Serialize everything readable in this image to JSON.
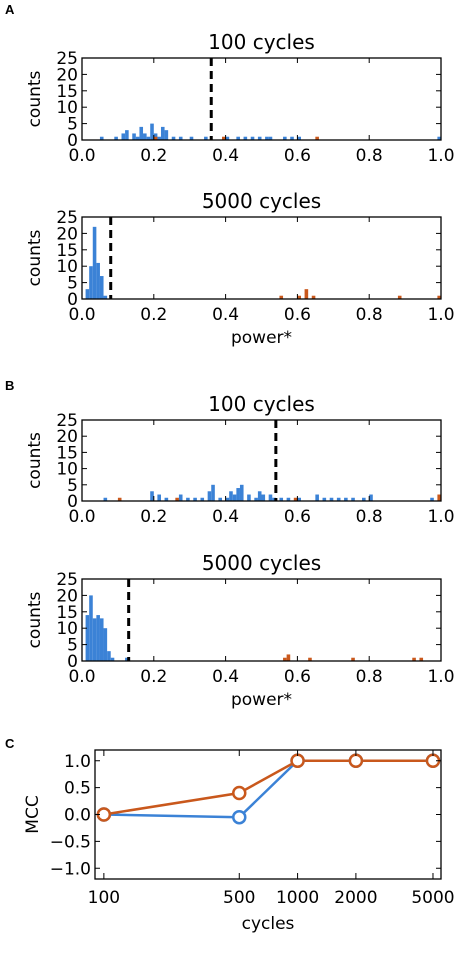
{
  "colors": {
    "blue": "#3b82d6",
    "orange": "#c9581c",
    "threshold": "#000000"
  },
  "panels": {
    "A": "A",
    "B": "B",
    "C": "C"
  },
  "chart_data": [
    {
      "type": "bar",
      "panel": "A",
      "title": "100 cycles",
      "xlabel": "",
      "ylabel": "counts",
      "xlim": [
        0,
        1
      ],
      "ylim": [
        0,
        25
      ],
      "xticks": [
        "0.0",
        "0.2",
        "0.4",
        "0.6",
        "0.8",
        "1.0"
      ],
      "yticks": [
        "0",
        "5",
        "10",
        "15",
        "20",
        "25"
      ],
      "threshold": 0.36,
      "series": [
        {
          "color": "blue",
          "bins": [
            [
              0.05,
              1
            ],
            [
              0.09,
              1
            ],
            [
              0.11,
              2
            ],
            [
              0.12,
              3
            ],
            [
              0.14,
              2
            ],
            [
              0.15,
              1
            ],
            [
              0.16,
              4
            ],
            [
              0.17,
              2
            ],
            [
              0.18,
              1
            ],
            [
              0.19,
              5
            ],
            [
              0.2,
              2
            ],
            [
              0.21,
              1
            ],
            [
              0.22,
              4
            ],
            [
              0.23,
              3
            ],
            [
              0.25,
              1
            ],
            [
              0.27,
              1
            ],
            [
              0.3,
              1
            ],
            [
              0.34,
              1
            ],
            [
              0.4,
              1
            ],
            [
              0.43,
              1
            ],
            [
              0.45,
              1
            ],
            [
              0.47,
              1
            ],
            [
              0.49,
              1
            ],
            [
              0.51,
              1
            ],
            [
              0.52,
              1
            ],
            [
              0.56,
              1
            ],
            [
              0.58,
              1
            ],
            [
              0.6,
              1
            ],
            [
              1.0,
              1
            ]
          ]
        },
        {
          "color": "orange",
          "bins": [
            [
              0.2,
              1
            ],
            [
              0.39,
              1
            ],
            [
              0.65,
              1
            ]
          ]
        }
      ]
    },
    {
      "type": "bar",
      "panel": "A",
      "title": "5000 cycles",
      "xlabel": "power*",
      "ylabel": "counts",
      "xlim": [
        0,
        1
      ],
      "ylim": [
        0,
        25
      ],
      "xticks": [
        "0.0",
        "0.2",
        "0.4",
        "0.6",
        "0.8",
        "1.0"
      ],
      "yticks": [
        "0",
        "5",
        "10",
        "15",
        "20",
        "25"
      ],
      "threshold": 0.08,
      "series": [
        {
          "color": "blue",
          "bins": [
            [
              0.01,
              3
            ],
            [
              0.02,
              10
            ],
            [
              0.03,
              22
            ],
            [
              0.04,
              11
            ],
            [
              0.05,
              7
            ],
            [
              0.06,
              1
            ]
          ]
        },
        {
          "color": "orange",
          "bins": [
            [
              0.55,
              1
            ],
            [
              0.6,
              1
            ],
            [
              0.62,
              3
            ],
            [
              0.64,
              1
            ],
            [
              0.88,
              1
            ],
            [
              1.0,
              1
            ]
          ]
        }
      ]
    },
    {
      "type": "bar",
      "panel": "B",
      "title": "100 cycles",
      "xlabel": "",
      "ylabel": "counts",
      "xlim": [
        0,
        1
      ],
      "ylim": [
        0,
        25
      ],
      "xticks": [
        "0.0",
        "0.2",
        "0.4",
        "0.6",
        "0.8",
        "1.0"
      ],
      "yticks": [
        "0",
        "5",
        "10",
        "15",
        "20",
        "25"
      ],
      "threshold": 0.54,
      "series": [
        {
          "color": "blue",
          "bins": [
            [
              0.06,
              1
            ],
            [
              0.19,
              3
            ],
            [
              0.21,
              2
            ],
            [
              0.23,
              1
            ],
            [
              0.27,
              2
            ],
            [
              0.29,
              1
            ],
            [
              0.31,
              1
            ],
            [
              0.33,
              1
            ],
            [
              0.35,
              3
            ],
            [
              0.36,
              5
            ],
            [
              0.38,
              1
            ],
            [
              0.4,
              1
            ],
            [
              0.41,
              3
            ],
            [
              0.42,
              2
            ],
            [
              0.43,
              4
            ],
            [
              0.44,
              5
            ],
            [
              0.46,
              2
            ],
            [
              0.48,
              1
            ],
            [
              0.49,
              3
            ],
            [
              0.5,
              2
            ],
            [
              0.52,
              2
            ],
            [
              0.53,
              1
            ],
            [
              0.55,
              1
            ],
            [
              0.57,
              1
            ],
            [
              0.6,
              1
            ],
            [
              0.65,
              2
            ],
            [
              0.67,
              1
            ],
            [
              0.69,
              1
            ],
            [
              0.71,
              1
            ],
            [
              0.73,
              1
            ],
            [
              0.75,
              1
            ],
            [
              0.78,
              1
            ],
            [
              0.8,
              2
            ],
            [
              0.97,
              1
            ]
          ]
        },
        {
          "color": "orange",
          "bins": [
            [
              0.1,
              1
            ],
            [
              0.26,
              1
            ],
            [
              0.59,
              1
            ],
            [
              0.99,
              2
            ]
          ]
        }
      ]
    },
    {
      "type": "bar",
      "panel": "B",
      "title": "5000 cycles",
      "xlabel": "power*",
      "ylabel": "counts",
      "xlim": [
        0,
        1
      ],
      "ylim": [
        0,
        25
      ],
      "xticks": [
        "0.0",
        "0.2",
        "0.4",
        "0.6",
        "0.8",
        "1.0"
      ],
      "yticks": [
        "0",
        "5",
        "10",
        "15",
        "20",
        "25"
      ],
      "threshold": 0.13,
      "series": [
        {
          "color": "blue",
          "bins": [
            [
              0.01,
              14
            ],
            [
              0.02,
              20
            ],
            [
              0.03,
              13
            ],
            [
              0.04,
              14
            ],
            [
              0.05,
              13
            ],
            [
              0.06,
              10
            ],
            [
              0.07,
              3
            ],
            [
              0.08,
              1
            ],
            [
              0.12,
              1
            ]
          ]
        },
        {
          "color": "orange",
          "bins": [
            [
              0.56,
              1
            ],
            [
              0.57,
              2
            ],
            [
              0.63,
              1
            ],
            [
              0.75,
              1
            ],
            [
              0.92,
              1
            ],
            [
              0.94,
              1
            ]
          ]
        }
      ]
    },
    {
      "type": "line",
      "panel": "C",
      "title": "",
      "xlabel": "cycles",
      "ylabel": "MCC",
      "xscale": "log",
      "xlim": [
        90,
        5500
      ],
      "ylim": [
        -1.2,
        1.2
      ],
      "xticks": [
        "100",
        "500",
        "1000",
        "2000",
        "5000"
      ],
      "xtick_values": [
        100,
        500,
        1000,
        2000,
        5000
      ],
      "yticks": [
        "1.0",
        "0.5",
        "0.0",
        "−0.5",
        "−1.0"
      ],
      "ytick_values": [
        1.0,
        0.5,
        0.0,
        -0.5,
        -1.0
      ],
      "series": [
        {
          "color": "blue",
          "x": [
            100,
            500,
            1000,
            2000,
            5000
          ],
          "y": [
            0.0,
            -0.05,
            1.0,
            1.0,
            1.0
          ]
        },
        {
          "color": "orange",
          "x": [
            100,
            500,
            1000,
            2000,
            5000
          ],
          "y": [
            0.0,
            0.4,
            1.0,
            1.0,
            1.0
          ]
        }
      ]
    }
  ]
}
